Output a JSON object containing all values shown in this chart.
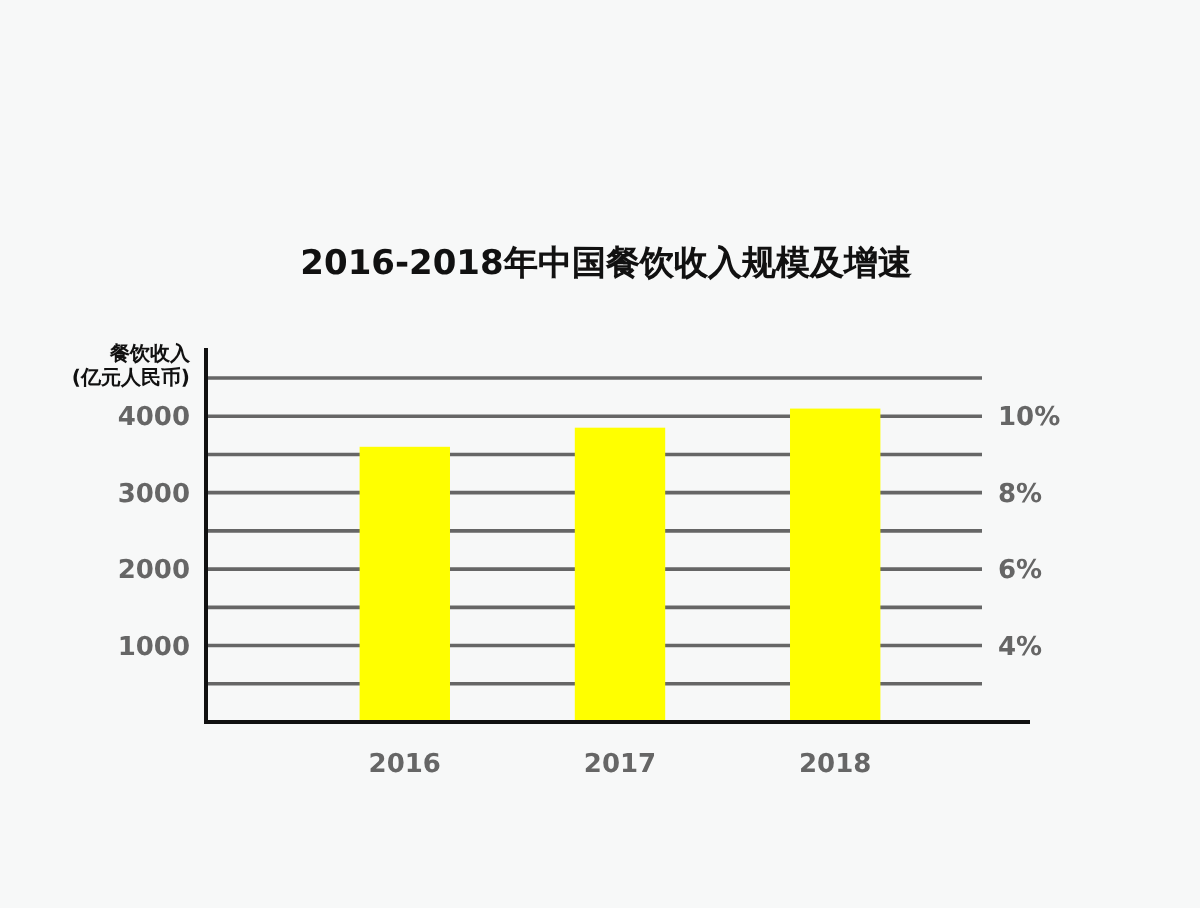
{
  "chart_data": {
    "type": "bar",
    "title": "2016-2018年中国餐饮收入规模及增速",
    "ylabel": "餐饮收入\n(亿元人民币)",
    "categories": [
      "2016",
      "2017",
      "2018"
    ],
    "values": [
      3600,
      3850,
      4100
    ],
    "color": "#ffff00",
    "ylim": [
      0,
      4500
    ],
    "yticks": [
      {
        "value": 500,
        "label": null
      },
      1000,
      {
        "value": 1500,
        "label": null
      },
      2000,
      {
        "value": 2500,
        "label": null
      },
      3000,
      {
        "value": 3500,
        "label": null
      },
      4000,
      {
        "value": 4500,
        "label": null
      }
    ],
    "y2lim": [
      2,
      11
    ],
    "y2ticks": [
      {
        "value": 4,
        "label": "4%"
      },
      {
        "value": 6,
        "label": "6%"
      },
      {
        "value": 8,
        "label": "8%"
      },
      {
        "value": 10,
        "label": "10%"
      }
    ],
    "grid": "y"
  }
}
